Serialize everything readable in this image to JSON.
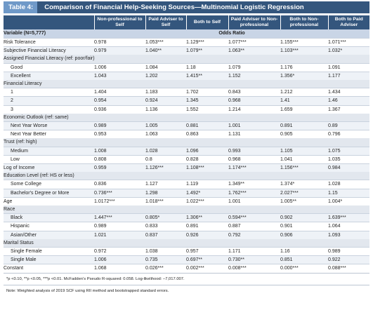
{
  "tab_label": "Table 4:",
  "title": "Comparison of Financial Help-Seeking Sources—Multinomial Logistic Regression",
  "columns": [
    "Non-professional to Self",
    "Paid Adviser to Self",
    "Both to Self",
    "Paid Adviser to Non-professional",
    "Both to Non-professional",
    "Both to Paid Adviser"
  ],
  "variable_header": "Variable (N=5,777)",
  "odds_ratio_header": "Odds Ratio",
  "rows": [
    {
      "type": "row",
      "label": "Risk Tolerance",
      "indent": false,
      "values": [
        "0.978",
        "1.053***",
        "1.129***",
        "1.077***",
        "1.155***",
        "1.071***"
      ]
    },
    {
      "type": "row",
      "label": "Subjective Financial Literacy",
      "indent": false,
      "values": [
        "0.979",
        "1.040**",
        "1.079**",
        "1.063**",
        "1.103***",
        "1.032*"
      ]
    },
    {
      "type": "section",
      "label": "Assigned Financial Literacy (ref: poor/fair)"
    },
    {
      "type": "row",
      "label": "Good",
      "indent": true,
      "values": [
        "1.006",
        "1.084",
        "1.18",
        "1.079",
        "1.176",
        "1.091"
      ]
    },
    {
      "type": "row",
      "label": "Excellent",
      "indent": true,
      "values": [
        "1.043",
        "1.202",
        "1.415**",
        "1.152",
        "1.356*",
        "1.177"
      ]
    },
    {
      "type": "section",
      "label": "Financial Literacy"
    },
    {
      "type": "row",
      "label": "1",
      "indent": true,
      "values": [
        "1.404",
        "1.183",
        "1.702",
        "0.843",
        "1.212",
        "1.434"
      ]
    },
    {
      "type": "row",
      "label": "2",
      "indent": true,
      "values": [
        "0.954",
        "0.924",
        "1.345",
        "0.968",
        "1.41",
        "1.46"
      ]
    },
    {
      "type": "row",
      "label": "3",
      "indent": true,
      "values": [
        "0.936",
        "1.136",
        "1.552",
        "1.214",
        "1.659",
        "1.367"
      ]
    },
    {
      "type": "section",
      "label": "Economic Outlook (ref: same)"
    },
    {
      "type": "row",
      "label": "Next Year Worse",
      "indent": true,
      "values": [
        "0.989",
        "1.005",
        "0.881",
        "1.001",
        "0.891",
        "0.89"
      ]
    },
    {
      "type": "row",
      "label": "Next Year Better",
      "indent": true,
      "values": [
        "0.953",
        "1.063",
        "0.863",
        "1.131",
        "0.905",
        "0.796"
      ]
    },
    {
      "type": "section",
      "label": "Trust (ref: high)"
    },
    {
      "type": "row",
      "label": "Medium",
      "indent": true,
      "values": [
        "1.008",
        "1.028",
        "1.096",
        "0.993",
        "1.105",
        "1.075"
      ]
    },
    {
      "type": "row",
      "label": "Low",
      "indent": true,
      "values": [
        "0.808",
        "0.8",
        "0.828",
        "0.968",
        "1.041",
        "1.035"
      ]
    },
    {
      "type": "row",
      "label": "Log of Income",
      "indent": false,
      "values": [
        "0.959",
        "1.126***",
        "1.108***",
        "1.174***",
        "1.156***",
        "0.984"
      ]
    },
    {
      "type": "section",
      "label": "Education Level (ref: HS or less)"
    },
    {
      "type": "row",
      "label": "Some College",
      "indent": true,
      "values": [
        "0.836",
        "1.127",
        "1.119",
        "1.349**",
        "1.374*",
        "1.028"
      ]
    },
    {
      "type": "row",
      "label": "Bachelor's Degree or More",
      "indent": true,
      "values": [
        "0.736***",
        "1.298",
        "1.492*",
        "1.762***",
        "2.027***",
        "1.15"
      ]
    },
    {
      "type": "row",
      "label": "Age",
      "indent": false,
      "values": [
        "1.0172***",
        "1.018***",
        "1.022***",
        "1.001",
        "1.005**",
        "1.004*"
      ]
    },
    {
      "type": "section",
      "label": "Race"
    },
    {
      "type": "row",
      "label": "Black",
      "indent": true,
      "values": [
        "1.447***",
        "0.805*",
        "1.306**",
        "0.594***",
        "0.902",
        "1.639***"
      ]
    },
    {
      "type": "row",
      "label": "Hispanic",
      "indent": true,
      "values": [
        "0.989",
        "0.833",
        "0.891",
        "0.887",
        "0.901",
        "1.064"
      ]
    },
    {
      "type": "row",
      "label": "Asian/Other",
      "indent": true,
      "values": [
        "1.021",
        "0.837",
        "0.926",
        "0.792",
        "0.906",
        "1.093"
      ]
    },
    {
      "type": "section",
      "label": "Marital Status"
    },
    {
      "type": "row",
      "label": "Single Female",
      "indent": true,
      "values": [
        "0.972",
        "1.038",
        "0.957",
        "1.171",
        "1.16",
        "0.989"
      ]
    },
    {
      "type": "row",
      "label": "Single Male",
      "indent": true,
      "values": [
        "1.006",
        "0.735",
        "0.697**",
        "0.730**",
        "0.851",
        "0.922"
      ]
    },
    {
      "type": "row",
      "label": "Constant",
      "indent": false,
      "values": [
        "1.068",
        "0.026***",
        "0.002***",
        "0.008***",
        "0.000***",
        "0.088***"
      ]
    }
  ],
  "footnote": "*p <0.10, **p <0.05, ***p <0.01. McFadden's Pseudo R-squared: 0.058. Log-likelihood: –7,017.007.",
  "note": "Note: Weighted analysis of 2019 SCF using RII method and bootstrapped standard errors."
}
